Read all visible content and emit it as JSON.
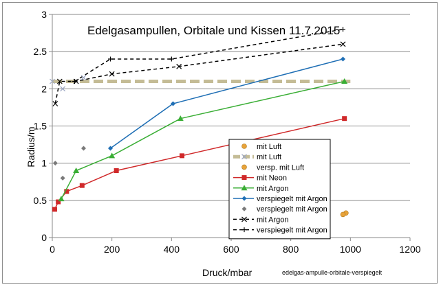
{
  "chart_data": {
    "type": "scatter",
    "title": "Edelgasampullen, Orbitale und Kissen 11.7.2015",
    "xlabel": "Druck/mbar",
    "ylabel": "Radius/m",
    "note": "edelgas-ampulle-orbitale-verspiegelt",
    "xlim": [
      0,
      1200
    ],
    "ylim": [
      0,
      3
    ],
    "xticks": [
      "0",
      "200",
      "400",
      "600",
      "800",
      "1000",
      "1200"
    ],
    "yticks": [
      "0",
      "0.5",
      "1",
      "1.5",
      "2",
      "2.5",
      "3"
    ],
    "grid": "horizontal",
    "legend_position": "bottom-right",
    "series": [
      {
        "name": "mit Luft",
        "style": "marker",
        "marker": "circle",
        "color": "#e8a33a",
        "points": [
          [
            985,
            0.33
          ]
        ]
      },
      {
        "name": "mit Luft",
        "style": "dashed-thick",
        "marker": "x",
        "color": "#c4bc96",
        "points": [
          [
            0,
            2.1
          ],
          [
            1000,
            2.1
          ]
        ]
      },
      {
        "name": "versp. mit Luft",
        "style": "marker",
        "marker": "circle",
        "color": "#e8a33a",
        "points": [
          [
            975,
            0.31
          ]
        ]
      },
      {
        "name": "mit Neon",
        "style": "line",
        "marker": "square",
        "color": "#d0292a",
        "points": [
          [
            8,
            0.38
          ],
          [
            20,
            0.48
          ],
          [
            48,
            0.62
          ],
          [
            100,
            0.7
          ],
          [
            215,
            0.9
          ],
          [
            435,
            1.1
          ],
          [
            980,
            1.6
          ]
        ]
      },
      {
        "name": "mit Argon",
        "style": "line",
        "marker": "triangle",
        "color": "#3aae35",
        "points": [
          [
            30,
            0.52
          ],
          [
            80,
            0.9
          ],
          [
            200,
            1.1
          ],
          [
            430,
            1.6
          ],
          [
            980,
            2.1
          ]
        ]
      },
      {
        "name": "verspiegelt mit Argon",
        "style": "line",
        "marker": "diamond",
        "color": "#1f6fb5",
        "points": [
          [
            195,
            1.2
          ],
          [
            405,
            1.8
          ],
          [
            975,
            2.4
          ]
        ]
      },
      {
        "name": "verspiegelt mit Argon",
        "style": "marker",
        "marker": "diamond",
        "color": "#7a7a7a",
        "points": [
          [
            10,
            1.0
          ],
          [
            35,
            0.8
          ],
          [
            105,
            1.2
          ]
        ]
      },
      {
        "name": "mit Argon",
        "style": "dashed",
        "marker": "x",
        "color": "#000000",
        "points": [
          [
            10,
            1.8
          ],
          [
            25,
            2.1
          ],
          [
            80,
            2.1
          ],
          [
            200,
            2.2
          ],
          [
            425,
            2.3
          ],
          [
            975,
            2.6
          ]
        ]
      },
      {
        "name": "verspiegelt mit Argon",
        "style": "dashed",
        "marker": "plus",
        "color": "#000000",
        "points": [
          [
            75,
            2.1
          ],
          [
            195,
            2.4
          ],
          [
            400,
            2.4
          ],
          [
            975,
            2.8
          ]
        ]
      },
      {
        "name": "",
        "style": "marker",
        "marker": "x",
        "color": "#9da8c4",
        "points": [
          [
            0,
            2.1
          ],
          [
            35,
            2.0
          ],
          [
            105,
            2.15
          ]
        ]
      }
    ]
  }
}
